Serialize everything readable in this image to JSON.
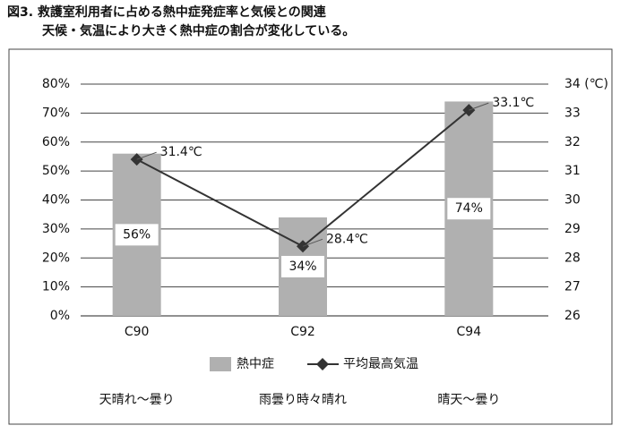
{
  "title": "図3. 救護室利用者に占める熱中症発症率と気候との関連",
  "subtitle": "天候・気温により大きく熱中症の割合が変化している。",
  "chart_data": {
    "type": "bar-line",
    "categories": [
      "C90",
      "C92",
      "C94"
    ],
    "series": [
      {
        "name": "熱中症",
        "type": "bar",
        "color": "#b0b0b0",
        "values": [
          56,
          34,
          74
        ],
        "value_labels": [
          "56%",
          "34%",
          "74%"
        ]
      },
      {
        "name": "平均最高気温",
        "type": "line",
        "axis": "y2",
        "color": "#333333",
        "values": [
          31.4,
          28.4,
          33.1
        ],
        "value_labels": [
          "31.4℃",
          "28.4℃",
          "33.1℃"
        ]
      }
    ],
    "ylim": [
      0,
      80
    ],
    "yticks": [
      {
        "value": 0,
        "label": "0%"
      },
      {
        "value": 10,
        "label": "10%"
      },
      {
        "value": 20,
        "label": "20%"
      },
      {
        "value": 30,
        "label": "30%"
      },
      {
        "value": 40,
        "label": "40%"
      },
      {
        "value": 50,
        "label": "50%"
      },
      {
        "value": 60,
        "label": "60%"
      },
      {
        "value": 70,
        "label": "70%"
      },
      {
        "value": 80,
        "label": "80%"
      }
    ],
    "y2lim": [
      26,
      34
    ],
    "y2ticks": [
      26,
      27,
      28,
      29,
      30,
      31,
      32,
      33,
      {
        "value": 34,
        "label": "34 (℃)"
      }
    ],
    "grid": true,
    "weather": [
      "天晴れ～曇り",
      "雨曇り時々晴れ",
      "晴天～曇り"
    ]
  }
}
